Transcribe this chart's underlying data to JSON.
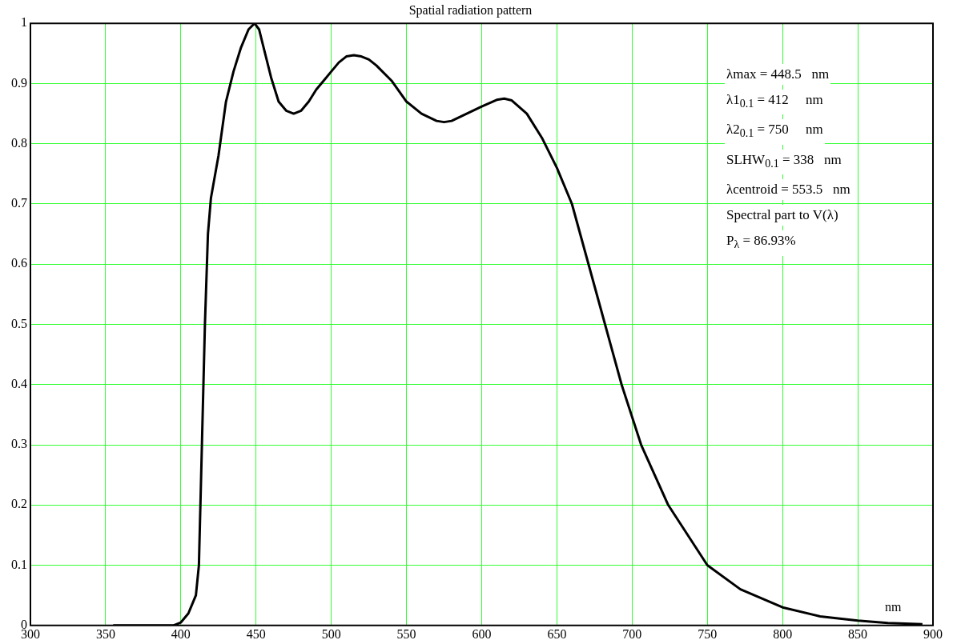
{
  "chart_data": {
    "type": "line",
    "title": "Spatial radiation pattern",
    "xlabel": "nm",
    "x": [
      355,
      370,
      385,
      395,
      400,
      405,
      410,
      412,
      414,
      416,
      418,
      420,
      425,
      430,
      435,
      440,
      445,
      449,
      452,
      455,
      460,
      465,
      470,
      475,
      480,
      485,
      490,
      495,
      500,
      505,
      510,
      515,
      520,
      525,
      530,
      540,
      550,
      560,
      570,
      575,
      580,
      590,
      600,
      610,
      615,
      620,
      630,
      640,
      650,
      660,
      671,
      682,
      693,
      706,
      724,
      750,
      772,
      800,
      825,
      850,
      870,
      893
    ],
    "series": [
      {
        "color": "#000000",
        "values": [
          0,
          0,
          0,
          0,
          0.005,
          0.02,
          0.05,
          0.1,
          0.3,
          0.5,
          0.65,
          0.71,
          0.78,
          0.87,
          0.92,
          0.96,
          0.99,
          1.0,
          0.99,
          0.96,
          0.91,
          0.87,
          0.855,
          0.85,
          0.855,
          0.87,
          0.89,
          0.905,
          0.92,
          0.935,
          0.945,
          0.947,
          0.945,
          0.94,
          0.93,
          0.905,
          0.87,
          0.85,
          0.838,
          0.836,
          0.838,
          0.85,
          0.862,
          0.873,
          0.875,
          0.872,
          0.85,
          0.81,
          0.76,
          0.7,
          0.6,
          0.5,
          0.4,
          0.3,
          0.2,
          0.1,
          0.06,
          0.03,
          0.015,
          0.008,
          0.004,
          0.002
        ]
      }
    ],
    "xlim": [
      300,
      900
    ],
    "xticks": [
      300,
      350,
      400,
      450,
      500,
      550,
      600,
      650,
      700,
      750,
      800,
      850,
      900
    ],
    "ylim": [
      0,
      1
    ],
    "yticks": [
      0,
      0.1,
      0.2,
      0.3,
      0.4,
      0.5,
      0.6,
      0.7,
      0.8,
      0.9,
      1
    ],
    "grid": true,
    "legend": false,
    "marker": "none",
    "line_style": "solid",
    "annotations": [
      "λmax = 448.5   nm",
      "λ1$_{0.1}$ = 412     nm",
      "λ2$_{0.1}$ = 750     nm",
      "SLHW$_{0.1}$ = 338   nm",
      "λcentroid = 553.5   nm",
      "Spectral part to V(λ)",
      "P$_{λ}$ = 86.93%"
    ]
  }
}
